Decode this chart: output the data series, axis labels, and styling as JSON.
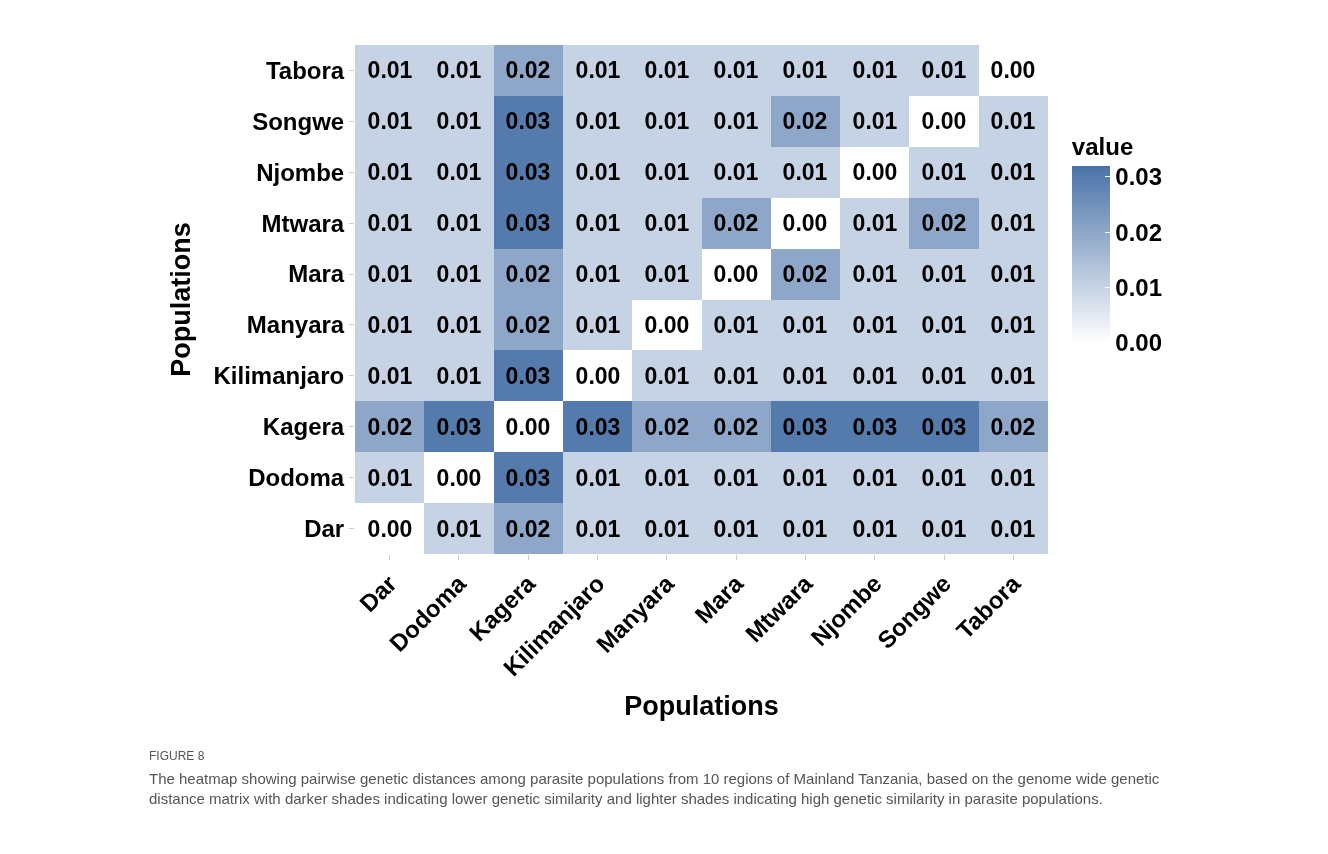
{
  "chart_data": {
    "type": "heatmap",
    "xlabel": "Populations",
    "ylabel": "Populations",
    "legend_title": "value",
    "categories": [
      "Dar",
      "Dodoma",
      "Kagera",
      "Kilimanjaro",
      "Manyara",
      "Mara",
      "Mtwara",
      "Njombe",
      "Songwe",
      "Tabora"
    ],
    "y_categories": [
      "Tabora",
      "Songwe",
      "Njombe",
      "Mtwara",
      "Mara",
      "Manyara",
      "Kilimanjaro",
      "Kagera",
      "Dodoma",
      "Dar"
    ],
    "cells": [
      [
        0.01,
        0.01,
        0.02,
        0.01,
        0.01,
        0.01,
        0.01,
        0.01,
        0.01,
        0.0
      ],
      [
        0.01,
        0.01,
        0.03,
        0.01,
        0.01,
        0.01,
        0.02,
        0.01,
        0.0,
        0.01
      ],
      [
        0.01,
        0.01,
        0.03,
        0.01,
        0.01,
        0.01,
        0.01,
        0.0,
        0.01,
        0.01
      ],
      [
        0.01,
        0.01,
        0.03,
        0.01,
        0.01,
        0.02,
        0.0,
        0.01,
        0.02,
        0.01
      ],
      [
        0.01,
        0.01,
        0.02,
        0.01,
        0.01,
        0.0,
        0.02,
        0.01,
        0.01,
        0.01
      ],
      [
        0.01,
        0.01,
        0.02,
        0.01,
        0.0,
        0.01,
        0.01,
        0.01,
        0.01,
        0.01
      ],
      [
        0.01,
        0.01,
        0.03,
        0.0,
        0.01,
        0.01,
        0.01,
        0.01,
        0.01,
        0.01
      ],
      [
        0.02,
        0.03,
        0.0,
        0.03,
        0.02,
        0.02,
        0.03,
        0.03,
        0.03,
        0.02
      ],
      [
        0.01,
        0.0,
        0.03,
        0.01,
        0.01,
        0.01,
        0.01,
        0.01,
        0.01,
        0.01
      ],
      [
        0.0,
        0.01,
        0.02,
        0.01,
        0.01,
        0.01,
        0.01,
        0.01,
        0.01,
        0.01
      ]
    ],
    "clim": [
      0,
      0.032
    ],
    "cticks": [
      {
        "value": 0,
        "label": "0.00"
      },
      {
        "value": 0.01,
        "label": "0.01"
      },
      {
        "value": 0.02,
        "label": "0.02"
      },
      {
        "value": 0.03,
        "label": "0.03"
      }
    ],
    "colors": [
      "#ffffff",
      "#4a72a8"
    ],
    "cell_labels": [
      [
        "0.01",
        "0.01",
        "0.02",
        "0.01",
        "0.01",
        "0.01",
        "0.01",
        "0.01",
        "0.01",
        "0.00"
      ],
      [
        "0.01",
        "0.01",
        "0.03",
        "0.01",
        "0.01",
        "0.01",
        "0.02",
        "0.01",
        "0.00",
        "0.01"
      ],
      [
        "0.01",
        "0.01",
        "0.03",
        "0.01",
        "0.01",
        "0.01",
        "0.01",
        "0.00",
        "0.01",
        "0.01"
      ],
      [
        "0.01",
        "0.01",
        "0.03",
        "0.01",
        "0.01",
        "0.02",
        "0.00",
        "0.01",
        "0.02",
        "0.01"
      ],
      [
        "0.01",
        "0.01",
        "0.02",
        "0.01",
        "0.01",
        "0.00",
        "0.02",
        "0.01",
        "0.01",
        "0.01"
      ],
      [
        "0.01",
        "0.01",
        "0.02",
        "0.01",
        "0.00",
        "0.01",
        "0.01",
        "0.01",
        "0.01",
        "0.01"
      ],
      [
        "0.01",
        "0.01",
        "0.03",
        "0.00",
        "0.01",
        "0.01",
        "0.01",
        "0.01",
        "0.01",
        "0.01"
      ],
      [
        "0.02",
        "0.03",
        "0.00",
        "0.03",
        "0.02",
        "0.02",
        "0.03",
        "0.03",
        "0.03",
        "0.02"
      ],
      [
        "0.01",
        "0.00",
        "0.03",
        "0.01",
        "0.01",
        "0.01",
        "0.01",
        "0.01",
        "0.01",
        "0.01"
      ],
      [
        "0.00",
        "0.01",
        "0.02",
        "0.01",
        "0.01",
        "0.01",
        "0.01",
        "0.01",
        "0.01",
        "0.01"
      ]
    ],
    "annotations": [
      "FIGURE 8",
      "The heatmap showing pairwise genetic distances among parasite populations from 10 regions of Mainland Tanzania, based on the genome wide genetic distance matrix with darker shades indicating lower genetic similarity and lighter shades indicating high genetic similarity in parasite populations."
    ]
  }
}
